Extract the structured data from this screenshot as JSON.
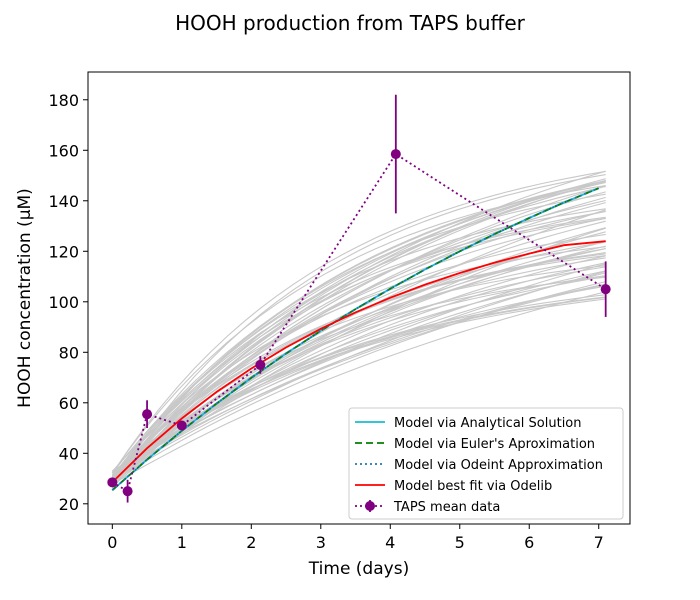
{
  "chart_data": {
    "type": "line",
    "title": "HOOH production from TAPS buffer",
    "xlabel": "Time (days)",
    "ylabel": "HOOH concentration (µM)",
    "xlim": [
      -0.35,
      7.45
    ],
    "ylim": [
      12,
      191
    ],
    "xticks": [
      0,
      1,
      2,
      3,
      4,
      5,
      6,
      7
    ],
    "yticks": [
      20,
      40,
      60,
      80,
      100,
      120,
      140,
      160,
      180
    ],
    "grid": false,
    "legend_position": "lower right",
    "series": [
      {
        "name": "Model via Analytical Solution",
        "color": "#17becf",
        "style": "solid",
        "x": [
          0,
          0.5,
          1,
          1.5,
          2,
          2.5,
          3,
          3.5,
          4,
          4.5,
          5,
          5.5,
          6,
          6.5,
          7
        ],
        "y": [
          25.4,
          37.5,
          48.9,
          59.7,
          69.9,
          79.5,
          88.5,
          97.1,
          105.2,
          112.8,
          120.0,
          126.8,
          133.2,
          139.3,
          145.0
        ]
      },
      {
        "name": "Model via Euler's Aproximation",
        "color": "#008000",
        "style": "dashed",
        "x": [
          0,
          0.5,
          1,
          1.5,
          2,
          2.5,
          3,
          3.5,
          4,
          4.5,
          5,
          5.5,
          6,
          6.5,
          7
        ],
        "y": [
          25.4,
          37.5,
          48.9,
          59.7,
          69.9,
          79.5,
          88.5,
          97.1,
          105.2,
          112.8,
          120.0,
          126.8,
          133.2,
          139.3,
          145.0
        ]
      },
      {
        "name": "Model via Odeint Approximation",
        "color": "#1f77b4",
        "style": "dotted",
        "x": [
          0,
          0.5,
          1,
          1.5,
          2,
          2.5,
          3,
          3.5,
          4,
          4.5,
          5,
          5.5,
          6,
          6.5,
          7
        ],
        "y": [
          25.4,
          37.5,
          48.9,
          59.7,
          69.9,
          79.5,
          88.5,
          97.1,
          105.2,
          112.8,
          120.0,
          126.8,
          133.2,
          139.3,
          145.0
        ]
      },
      {
        "name": "Model best fit via Odelib",
        "color": "#ff0000",
        "style": "solid",
        "x": [
          0,
          0.5,
          1,
          1.5,
          2,
          2.5,
          3,
          3.5,
          4,
          4.5,
          5,
          5.5,
          6,
          6.5,
          7.1
        ],
        "y": [
          28.5,
          42.0,
          53.8,
          64.3,
          73.6,
          81.9,
          89.3,
          95.8,
          101.6,
          106.8,
          111.4,
          115.5,
          119.1,
          122.4,
          124.0
        ]
      },
      {
        "name": "TAPS mean data",
        "color": "#800080",
        "style": "dotted-markers",
        "x": [
          0,
          0.22,
          0.5,
          1.0,
          2.13,
          4.08,
          7.1
        ],
        "y": [
          28.5,
          25.0,
          55.5,
          51.0,
          75.0,
          158.5,
          105.0
        ],
        "yerr": [
          1.5,
          4.5,
          5.5,
          1.5,
          3.5,
          23.5,
          11.0
        ]
      }
    ]
  }
}
